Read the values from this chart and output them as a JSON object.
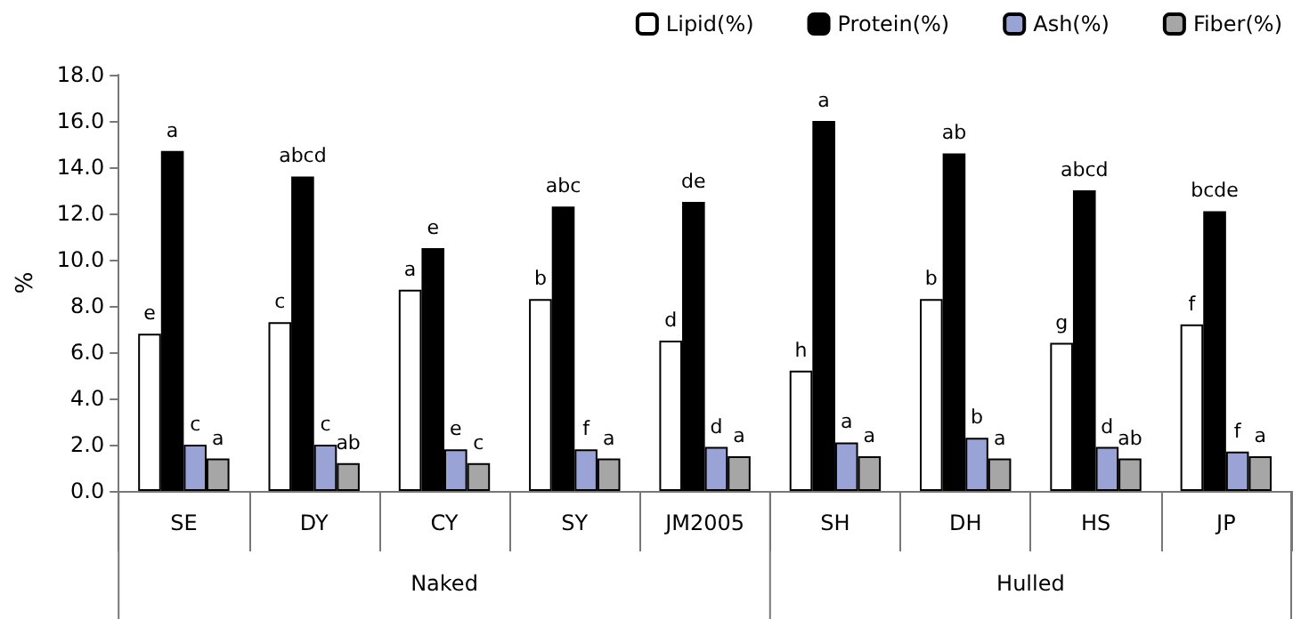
{
  "chart_data": {
    "type": "bar",
    "ylabel": "%",
    "categories": [
      "SE",
      "DY",
      "CY",
      "SY",
      "JM2005",
      "SH",
      "DH",
      "HS",
      "JP"
    ],
    "series": [
      {
        "name": "Lipid(%)",
        "color": "#ffffff",
        "values": [
          6.8,
          7.3,
          8.7,
          8.3,
          6.5,
          5.2,
          8.3,
          6.4,
          7.2
        ],
        "value_labels": [
          "e",
          "c",
          "a",
          "b",
          "d",
          "h",
          "b",
          "g",
          "f"
        ]
      },
      {
        "name": "Protein(%)",
        "color": "#000000",
        "values": [
          14.7,
          13.6,
          10.5,
          12.3,
          12.5,
          16.0,
          14.6,
          13.0,
          12.1
        ],
        "value_labels": [
          "a",
          "abcd",
          "e",
          "abc",
          "de",
          "a",
          "ab",
          "abcd",
          "bcde"
        ]
      },
      {
        "name": "Ash(%)",
        "color": "#9aa3d6",
        "values": [
          2.0,
          2.0,
          1.8,
          1.8,
          1.9,
          2.1,
          2.3,
          1.9,
          1.7
        ],
        "value_labels": [
          "c",
          "c",
          "e",
          "f",
          "d",
          "a",
          "b",
          "d",
          "f"
        ]
      },
      {
        "name": "Fiber(%)",
        "color": "#a6a6a6",
        "values": [
          1.4,
          1.2,
          1.2,
          1.4,
          1.5,
          1.5,
          1.4,
          1.4,
          1.5
        ],
        "value_labels": [
          "a",
          "ab",
          "c",
          "a",
          "a",
          "a",
          "a",
          "ab",
          "a"
        ]
      }
    ],
    "ylim": [
      0,
      18
    ],
    "yticks": [
      {
        "value": 0,
        "label": "0.0"
      },
      {
        "value": 2,
        "label": "2.0"
      },
      {
        "value": 4,
        "label": "4.0"
      },
      {
        "value": 6,
        "label": "6.0"
      },
      {
        "value": 8,
        "label": "8.0"
      },
      {
        "value": 10,
        "label": "10.0"
      },
      {
        "value": 12,
        "label": "12.0"
      },
      {
        "value": 14,
        "label": "14.0"
      },
      {
        "value": 16,
        "label": "16.0"
      },
      {
        "value": 18,
        "label": "18.0"
      }
    ],
    "annotations": [
      "Naked",
      "Hulled"
    ],
    "grid": false,
    "legend": "top right"
  }
}
